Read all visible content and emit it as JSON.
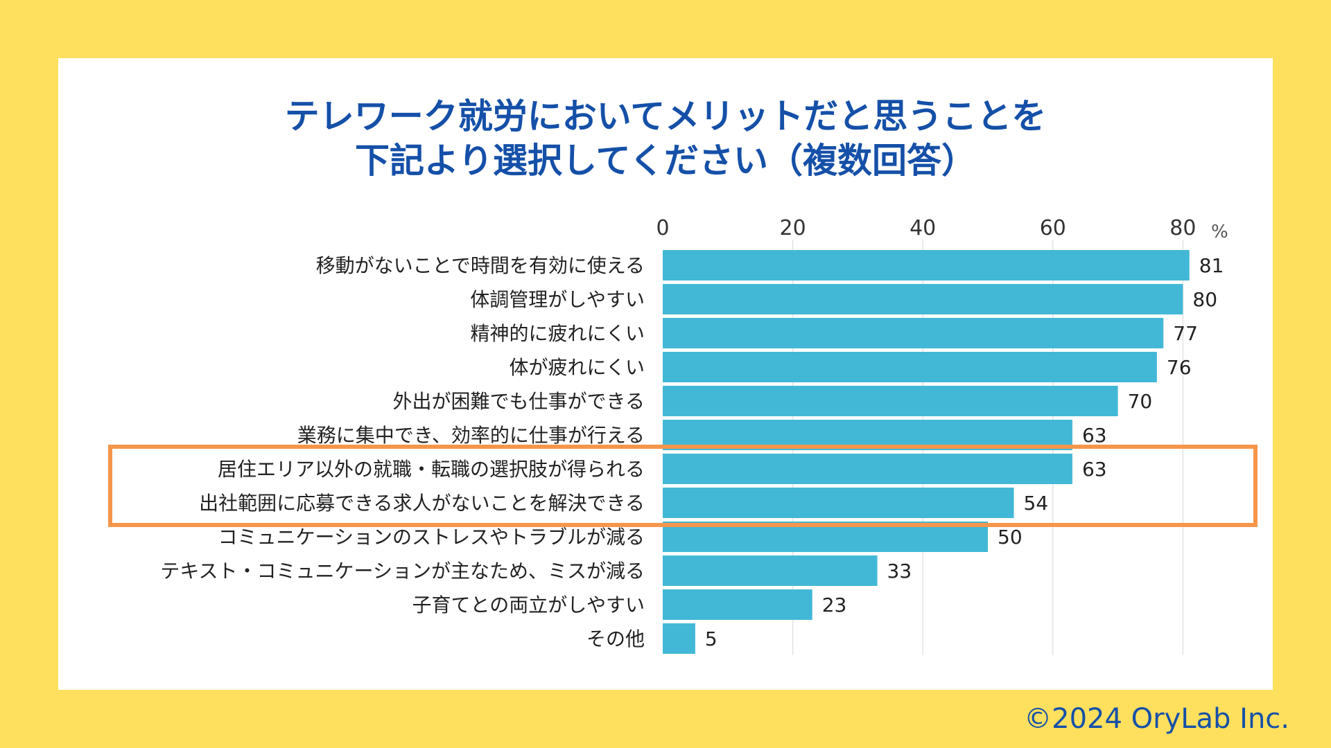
{
  "chart_data": {
    "type": "bar",
    "orientation": "horizontal",
    "title": [
      "テレワーク就労においてメリットだと思うことを",
      "下記より選択してください（複数回答）"
    ],
    "unit": "%",
    "categories": [
      "移動がないことで時間を有効に使える",
      "体調管理がしやすい",
      "精神的に疲れにくい",
      "体が疲れにくい",
      "外出が困難でも仕事ができる",
      "業務に集中でき、効率的に仕事が行える",
      "居住エリア以外の就職・転職の選択肢が得られる",
      "出社範囲に応募できる求人がないことを解決できる",
      "コミュニケーションのストレスやトラブルが減る",
      "テキスト・コミュニケーションが主なため、ミスが減る",
      "子育てとの両立がしやすい",
      "その他"
    ],
    "values": [
      81,
      80,
      77,
      76,
      70,
      63,
      63,
      54,
      50,
      33,
      23,
      5
    ],
    "xlim": [
      0,
      80
    ],
    "xticks": [
      "0",
      "20",
      "40",
      "60",
      "80"
    ],
    "xtick_values": [
      0,
      20,
      40,
      60,
      80
    ],
    "grid": true,
    "highlight_categories": [
      6,
      7
    ]
  },
  "colors": {
    "bar": "#42b8d6",
    "title": "#1550a8",
    "highlight_box": "#f5964b",
    "background": "#ffdf5e",
    "card": "#ffffff"
  },
  "footer": {
    "copyright": "©2024 OryLab Inc."
  }
}
